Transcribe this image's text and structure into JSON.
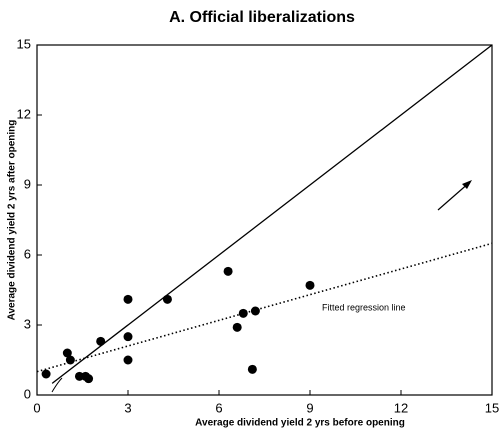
{
  "chart_data": {
    "type": "scatter",
    "title": "A.  Official  liberalizations",
    "xlabel": "Average    dividend    yield   2   yrs    before    opening",
    "ylabel": "Average dividend yield 2 yrs after opening",
    "annotation": "Fitted regression line",
    "color": "#000000",
    "x": [
      0.3,
      1.0,
      1.1,
      1.4,
      1.6,
      1.7,
      2.1,
      3.0,
      3.0,
      3.0,
      4.3,
      6.3,
      6.6,
      6.8,
      7.1,
      7.2,
      9.0
    ],
    "y": [
      0.9,
      1.8,
      1.5,
      0.8,
      0.8,
      0.7,
      2.3,
      4.1,
      2.5,
      1.5,
      4.1,
      5.3,
      2.9,
      3.5,
      1.1,
      3.6,
      4.7
    ],
    "lines": [
      {
        "style": "solid",
        "x": [
          0.5,
          15
        ],
        "y": [
          0.5,
          15
        ]
      },
      {
        "style": "dotted",
        "x": [
          0,
          15
        ],
        "y": [
          1.0,
          6.5
        ]
      }
    ],
    "xlim": [
      0,
      15
    ],
    "ylim": [
      0,
      15
    ],
    "xticks": [
      0,
      3,
      6,
      9,
      12,
      15
    ],
    "yticks": [
      0,
      3,
      6,
      9,
      12,
      15
    ]
  }
}
